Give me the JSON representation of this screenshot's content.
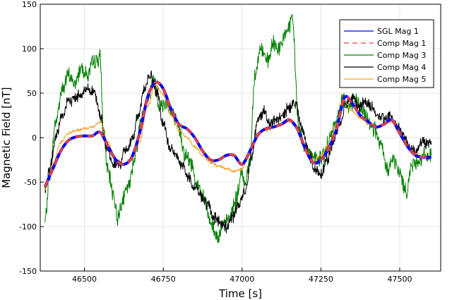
{
  "chart_data": {
    "type": "line",
    "title": "",
    "xlabel": "Time [s]",
    "ylabel": "Magnetic Field [nT]",
    "xlim": [
      46360,
      47630
    ],
    "ylim": [
      -150,
      150
    ],
    "xticks": [
      46500,
      46750,
      47000,
      47250,
      47500
    ],
    "yticks": [
      -150,
      -100,
      -50,
      0,
      50,
      100,
      150
    ],
    "xtick_labels": [
      "46500",
      "46750",
      "47000",
      "47250",
      "47500"
    ],
    "ytick_labels": [
      "-150",
      "-100",
      "-50",
      "0",
      "50",
      "100",
      "150"
    ],
    "grid": true,
    "legend": "top-right",
    "series": [
      {
        "name": "SGL Mag 1",
        "color": "#0000ff",
        "style": "solid",
        "noise": 0,
        "x": [
          46375,
          46400,
          46425,
          46450,
          46475,
          46500,
          46525,
          46550,
          46575,
          46600,
          46625,
          46650,
          46675,
          46700,
          46725,
          46750,
          46775,
          46800,
          46825,
          46850,
          46875,
          46900,
          46925,
          46950,
          46975,
          47000,
          47025,
          47050,
          47075,
          47100,
          47125,
          47150,
          47175,
          47200,
          47225,
          47250,
          47275,
          47300,
          47325,
          47350,
          47375,
          47400,
          47425,
          47450,
          47475,
          47500,
          47525,
          47550,
          47575,
          47600
        ],
        "y": [
          -55,
          -35,
          -15,
          -3,
          1,
          2,
          2,
          6,
          -10,
          -25,
          -30,
          -22,
          5,
          45,
          62,
          55,
          32,
          15,
          10,
          0,
          -15,
          -25,
          -25,
          -20,
          -20,
          -30,
          -15,
          3,
          10,
          12,
          15,
          20,
          10,
          -12,
          -28,
          -25,
          -12,
          10,
          45,
          38,
          25,
          18,
          12,
          15,
          20,
          5,
          -10,
          -20,
          -22,
          -22
        ]
      },
      {
        "name": "Comp Mag 1",
        "color": "#e8413c",
        "style": "dashed",
        "noise": 0,
        "x": [
          46375,
          46400,
          46425,
          46450,
          46475,
          46500,
          46525,
          46550,
          46575,
          46600,
          46625,
          46650,
          46675,
          46700,
          46725,
          46750,
          46775,
          46800,
          46825,
          46850,
          46875,
          46900,
          46925,
          46950,
          46975,
          47000,
          47025,
          47050,
          47075,
          47100,
          47125,
          47150,
          47175,
          47200,
          47225,
          47250,
          47275,
          47300,
          47325,
          47350,
          47375,
          47400,
          47425,
          47450,
          47475,
          47500,
          47525,
          47550,
          47575,
          47600
        ],
        "y": [
          -55,
          -35,
          -15,
          -3,
          1,
          2,
          2,
          6,
          -10,
          -25,
          -30,
          -22,
          5,
          45,
          62,
          55,
          32,
          15,
          10,
          0,
          -15,
          -25,
          -25,
          -20,
          -20,
          -30,
          -15,
          3,
          10,
          12,
          15,
          20,
          10,
          -12,
          -28,
          -25,
          -12,
          10,
          45,
          38,
          25,
          18,
          12,
          15,
          20,
          5,
          -10,
          -20,
          -22,
          -22
        ]
      },
      {
        "name": "Comp Mag 3",
        "color": "#008000",
        "style": "solid",
        "noise": 7,
        "x": [
          46375,
          46390,
          46410,
          46430,
          46450,
          46470,
          46490,
          46510,
          46530,
          46550,
          46560,
          46575,
          46590,
          46605,
          46620,
          46640,
          46660,
          46680,
          46700,
          46720,
          46740,
          46760,
          46780,
          46800,
          46820,
          46840,
          46860,
          46880,
          46900,
          46920,
          46940,
          46960,
          46980,
          47000,
          47010,
          47025,
          47040,
          47060,
          47080,
          47100,
          47120,
          47140,
          47160,
          47180,
          47200,
          47220,
          47240,
          47260,
          47280,
          47300,
          47320,
          47340,
          47360,
          47380,
          47400,
          47420,
          47440,
          47460,
          47480,
          47500,
          47520,
          47540,
          47560,
          47580,
          47600
        ],
        "y": [
          -95,
          -40,
          20,
          55,
          70,
          60,
          80,
          70,
          85,
          90,
          10,
          -40,
          -60,
          -90,
          -70,
          -55,
          -20,
          20,
          45,
          65,
          35,
          40,
          25,
          10,
          -20,
          -30,
          -55,
          -70,
          -95,
          -110,
          -100,
          -90,
          -70,
          -40,
          -50,
          -25,
          70,
          100,
          85,
          105,
          100,
          120,
          130,
          10,
          -10,
          -20,
          -25,
          -20,
          0,
          20,
          45,
          35,
          40,
          30,
          20,
          10,
          -10,
          -35,
          -25,
          -40,
          -60,
          -30,
          -25,
          -20,
          -20
        ]
      },
      {
        "name": "Comp Mag 4",
        "color": "#000000",
        "style": "solid",
        "noise": 5,
        "x": [
          46375,
          46390,
          46410,
          46430,
          46450,
          46470,
          46490,
          46510,
          46530,
          46550,
          46570,
          46590,
          46610,
          46630,
          46650,
          46670,
          46690,
          46710,
          46730,
          46750,
          46770,
          46790,
          46810,
          46830,
          46850,
          46870,
          46890,
          46910,
          46930,
          46950,
          46970,
          46990,
          47010,
          47030,
          47050,
          47070,
          47090,
          47110,
          47130,
          47150,
          47170,
          47190,
          47210,
          47230,
          47250,
          47270,
          47290,
          47310,
          47330,
          47350,
          47370,
          47390,
          47410,
          47430,
          47450,
          47470,
          47490,
          47510,
          47530,
          47550,
          47570,
          47600
        ],
        "y": [
          -60,
          -35,
          0,
          25,
          40,
          45,
          50,
          55,
          52,
          25,
          -10,
          -30,
          -30,
          -15,
          -5,
          25,
          55,
          70,
          50,
          15,
          -10,
          -20,
          -30,
          -45,
          -55,
          -65,
          -75,
          -90,
          -95,
          -100,
          -90,
          -75,
          -60,
          -20,
          20,
          30,
          15,
          20,
          25,
          35,
          40,
          10,
          -15,
          -35,
          -40,
          -25,
          -5,
          15,
          40,
          45,
          35,
          40,
          35,
          25,
          20,
          25,
          15,
          5,
          -10,
          -15,
          -5,
          -8
        ]
      },
      {
        "name": "Comp Mag 5",
        "color": "#f2a01f",
        "style": "solid",
        "noise": 1.2,
        "x": [
          46375,
          46400,
          46425,
          46450,
          46475,
          46500,
          46525,
          46550,
          46575,
          46600,
          46625,
          46650,
          46675,
          46700,
          46725,
          46750,
          46775,
          46800,
          46825,
          46850,
          46875,
          46900,
          46925,
          46950,
          46975,
          47000,
          47025,
          47050,
          47075,
          47100,
          47125,
          47150,
          47175,
          47200,
          47225,
          47250,
          47275,
          47300,
          47325,
          47350,
          47375,
          47400,
          47425,
          47450,
          47475,
          47500,
          47525,
          47550,
          47575,
          47600
        ],
        "y": [
          -58,
          -30,
          -5,
          5,
          8,
          10,
          12,
          18,
          -5,
          -25,
          -30,
          -25,
          -5,
          35,
          60,
          48,
          25,
          8,
          0,
          -10,
          -20,
          -28,
          -32,
          -35,
          -38,
          -35,
          -15,
          5,
          8,
          12,
          15,
          18,
          10,
          -12,
          -25,
          -20,
          -8,
          15,
          40,
          30,
          22,
          16,
          12,
          15,
          18,
          5,
          -10,
          -18,
          -22,
          -22
        ]
      }
    ]
  }
}
